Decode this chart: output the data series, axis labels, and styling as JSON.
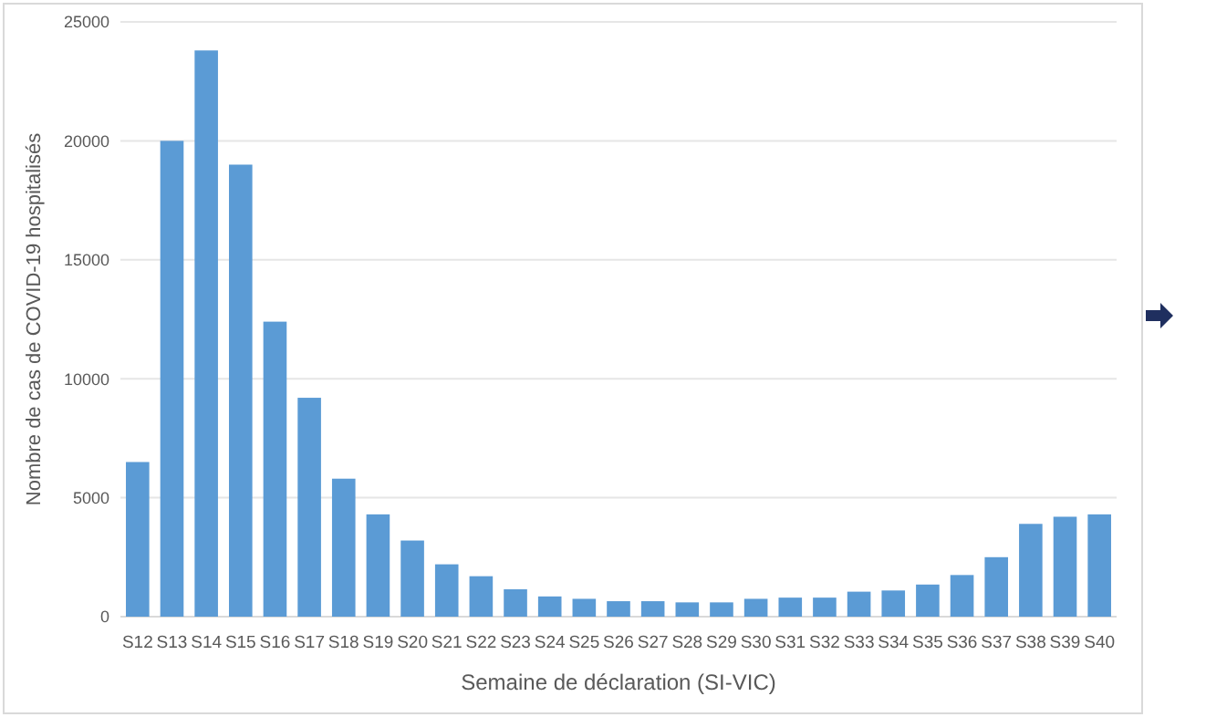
{
  "chart_data": {
    "type": "bar",
    "xlabel": "Semaine de déclaration (SI-VIC)",
    "ylabel": "Nombre de cas de COVID-19 hospitalisés",
    "categories": [
      "S12",
      "S13",
      "S14",
      "S15",
      "S16",
      "S17",
      "S18",
      "S19",
      "S20",
      "S21",
      "S22",
      "S23",
      "S24",
      "S25",
      "S26",
      "S27",
      "S28",
      "S29",
      "S30",
      "S31",
      "S32",
      "S33",
      "S34",
      "S35",
      "S36",
      "S37",
      "S38",
      "S39",
      "S40"
    ],
    "values": [
      6500,
      20000,
      23800,
      19000,
      12400,
      9200,
      5800,
      4300,
      3200,
      2200,
      1700,
      1150,
      850,
      750,
      650,
      650,
      600,
      600,
      750,
      800,
      800,
      1050,
      1100,
      1350,
      1750,
      2500,
      3900,
      4200,
      4300
    ],
    "color": "#5b9bd5",
    "ylim": [
      0,
      25000
    ],
    "yticks": [
      0,
      5000,
      10000,
      15000,
      20000,
      25000
    ],
    "grid": "y"
  }
}
